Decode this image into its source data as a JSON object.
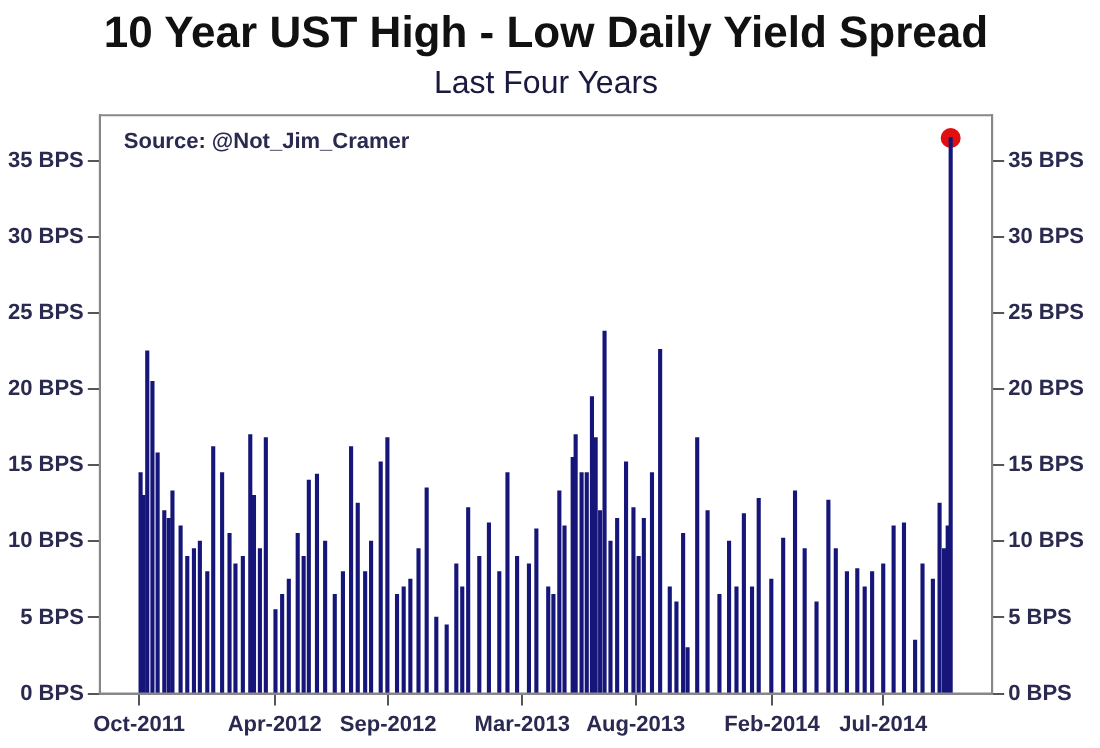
{
  "chart_data": {
    "type": "bar",
    "title": "10 Year UST High - Low Daily Yield Spread",
    "subtitle": "Last Four Years",
    "annotations": [
      "Source: @Not_Jim_Cramer"
    ],
    "xlim": [
      "2011-08-09",
      "2014-11-25"
    ],
    "xticks": [
      {
        "value": "2011-10",
        "label": "Oct-2011"
      },
      {
        "value": "2012-04",
        "label": "Apr-2012"
      },
      {
        "value": "2012-09",
        "label": "Sep-2012"
      },
      {
        "value": "2013-03",
        "label": "Mar-2013"
      },
      {
        "value": "2013-08",
        "label": "Aug-2013"
      },
      {
        "value": "2014-02",
        "label": "Feb-2014"
      },
      {
        "value": "2014-07",
        "label": "Jul-2014"
      }
    ],
    "ylim": [
      0,
      38
    ],
    "yticks": [
      {
        "value": 0,
        "label": "0 BPS"
      },
      {
        "value": 5,
        "label": "5 BPS"
      },
      {
        "value": 10,
        "label": "10 BPS"
      },
      {
        "value": 15,
        "label": "15 BPS"
      },
      {
        "value": 20,
        "label": "20 BPS"
      },
      {
        "value": 25,
        "label": "25 BPS"
      },
      {
        "value": 30,
        "label": "30 BPS"
      },
      {
        "value": 35,
        "label": "35 BPS"
      }
    ],
    "y2lim": [
      0,
      38
    ],
    "y2ticks": [
      {
        "value": 0,
        "label": "0 BPS"
      },
      {
        "value": 5,
        "label": "5 BPS"
      },
      {
        "value": 10,
        "label": "10 BPS"
      },
      {
        "value": 15,
        "label": "15 BPS"
      },
      {
        "value": 20,
        "label": "20 BPS"
      },
      {
        "value": 25,
        "label": "25 BPS"
      },
      {
        "value": 30,
        "label": "30 BPS"
      },
      {
        "value": 35,
        "label": "35 BPS"
      }
    ],
    "grid": false,
    "legend": false,
    "marker": "circle",
    "series": [
      {
        "color": "#16167a",
        "x": [
          "2011-10-03",
          "2011-10-07",
          "2011-10-12",
          "2011-10-19",
          "2011-10-26",
          "2011-11-04",
          "2011-11-10",
          "2011-11-15",
          "2011-11-26",
          "2011-12-05",
          "2011-12-14",
          "2011-12-22",
          "2012-01-01",
          "2012-01-09",
          "2012-01-21",
          "2012-01-31",
          "2012-02-08",
          "2012-02-18",
          "2012-02-28",
          "2012-03-04",
          "2012-03-12",
          "2012-03-20",
          "2012-04-02",
          "2012-04-11",
          "2012-04-20",
          "2012-05-02",
          "2012-05-10",
          "2012-05-17",
          "2012-05-28",
          "2012-06-08",
          "2012-06-21",
          "2012-07-02",
          "2012-07-13",
          "2012-07-22",
          "2012-08-01",
          "2012-08-09",
          "2012-08-22",
          "2012-08-31",
          "2012-09-13",
          "2012-09-22",
          "2012-10-01",
          "2012-10-12",
          "2012-10-23",
          "2012-11-05",
          "2012-11-19",
          "2012-12-02",
          "2012-12-10",
          "2012-12-18",
          "2013-01-02",
          "2013-01-15",
          "2013-01-29",
          "2013-02-09",
          "2013-02-22",
          "2013-03-10",
          "2013-03-20",
          "2013-04-05",
          "2013-04-12",
          "2013-04-20",
          "2013-04-27",
          "2013-05-08",
          "2013-05-12",
          "2013-05-20",
          "2013-05-27",
          "2013-06-03",
          "2013-06-08",
          "2013-06-14",
          "2013-06-20",
          "2013-06-28",
          "2013-07-07",
          "2013-07-19",
          "2013-07-29",
          "2013-08-05",
          "2013-08-12",
          "2013-08-23",
          "2013-09-03",
          "2013-09-16",
          "2013-09-25",
          "2013-10-04",
          "2013-10-10",
          "2013-10-23",
          "2013-11-06",
          "2013-11-22",
          "2013-12-05",
          "2013-12-15",
          "2013-12-25",
          "2014-01-05",
          "2014-01-14",
          "2014-01-31",
          "2014-02-16",
          "2014-03-04",
          "2014-03-17",
          "2014-04-02",
          "2014-04-18",
          "2014-04-28",
          "2014-05-13",
          "2014-05-27",
          "2014-06-06",
          "2014-06-16",
          "2014-07-01",
          "2014-07-15",
          "2014-07-29",
          "2014-08-13",
          "2014-08-23",
          "2014-09-06",
          "2014-09-15",
          "2014-09-21",
          "2014-09-26",
          "2014-09-30"
        ],
        "values": [
          14.5,
          13,
          22.5,
          20.5,
          15.8,
          12,
          11.5,
          13.3,
          11,
          9,
          9.5,
          10,
          8,
          16.2,
          14.5,
          10.5,
          8.5,
          9,
          17,
          13,
          9.5,
          16.8,
          5.5,
          6.5,
          7.5,
          10.5,
          9,
          14,
          14.4,
          10,
          6.5,
          8,
          16.2,
          12.5,
          8,
          10,
          15.2,
          16.8,
          6.5,
          7,
          7.5,
          9.5,
          13.5,
          5,
          4.5,
          8.5,
          7,
          12.2,
          9,
          11.2,
          8,
          14.5,
          9,
          8.5,
          10.8,
          7,
          6.5,
          13.3,
          11,
          15.5,
          17,
          14.5,
          14.5,
          19.5,
          16.8,
          12,
          23.8,
          10,
          11.5,
          15.2,
          12.2,
          9,
          11.5,
          14.5,
          22.6,
          7,
          6,
          10.5,
          3,
          16.8,
          12,
          6.5,
          10,
          7,
          11.8,
          7,
          12.8,
          7.5,
          10.2,
          13.3,
          9.5,
          6,
          12.7,
          9.5,
          8,
          8.2,
          7,
          8,
          8.5,
          11,
          11.2,
          3.5,
          8.5,
          7.5,
          12.5,
          9.5,
          11,
          36.5
        ]
      },
      {
        "type": "scatter",
        "color": "#e01010",
        "x": [
          "2014-09-30"
        ],
        "values": [
          36.5
        ]
      }
    ]
  }
}
